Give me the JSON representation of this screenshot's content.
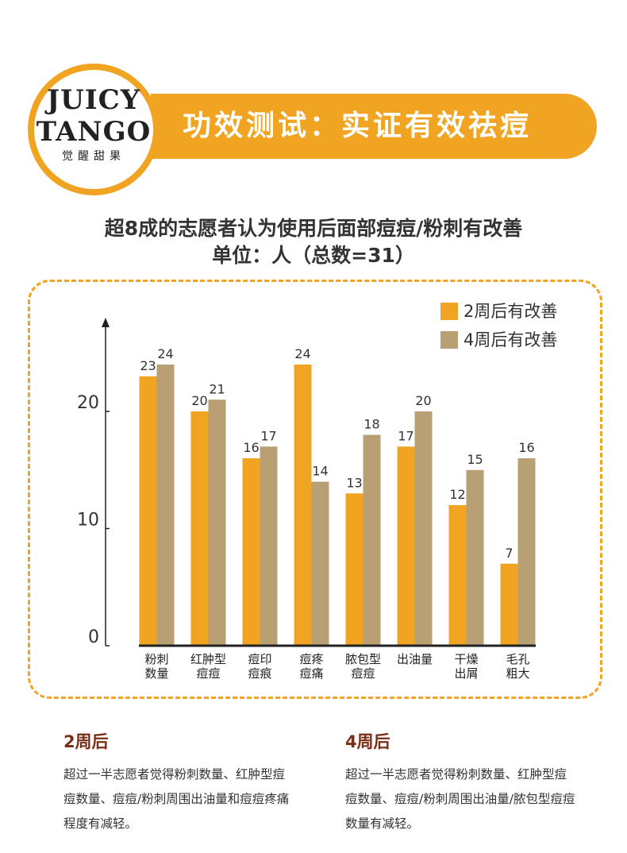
{
  "header": {
    "logo": {
      "line1": "JUICY",
      "line2": "TANGO",
      "tagline": "觉醒甜果"
    },
    "title": "功效测试：实证有效祛痘"
  },
  "chart_data": {
    "type": "bar",
    "title": "超8成的志愿者认为使用后面部痘痘/粉刺有改善",
    "subtitle": "单位：人（总数=31）",
    "categories": [
      "粉刺\n数量",
      "红肿型\n痘痘",
      "痘印\n痘痕",
      "痘疼\n痘痛",
      "脓包型\n痘痘",
      "出油量",
      "干燥\n出屑",
      "毛孔\n粗大"
    ],
    "series": [
      {
        "name": "2周后有改善",
        "color": "#f0a422",
        "values": [
          23,
          20,
          16,
          24,
          13,
          17,
          12,
          7
        ]
      },
      {
        "name": "4周后有改善",
        "color": "#b9a074",
        "values": [
          24,
          21,
          17,
          14,
          18,
          20,
          15,
          16
        ]
      }
    ],
    "ylim": [
      0,
      28
    ],
    "yticks": [
      0,
      10,
      20
    ],
    "legend": "top-right"
  },
  "notes": [
    {
      "heading": "2周后",
      "text": "超过一半志愿者觉得粉刺数量、红肿型痘痘数量、痘痘/粉刺周围出油量和痘痘疼痛程度有减轻。"
    },
    {
      "heading": "4周后",
      "text": "超过一半志愿者觉得粉刺数量、红肿型痘痘数量、痘痘/粉刺周围出油量/脓包型痘痘数量有减轻。"
    }
  ]
}
